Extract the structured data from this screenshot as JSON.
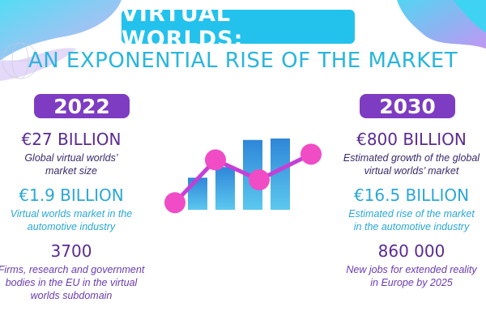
{
  "header": {
    "title": "VIRTUAL WORLDS:",
    "subtitle": "AN EXPONENTIAL RISE OF THE MARKET"
  },
  "left": {
    "year": "2022",
    "stats": [
      {
        "value": "€27 BILLION",
        "desc_lines": [
          "Global virtual worlds’",
          "market size"
        ]
      },
      {
        "value": "€1.9 BILLION",
        "desc_lines": [
          "Virtual worlds market in the",
          "automotive industry"
        ]
      },
      {
        "value": "3700",
        "desc_lines": [
          "Firms, research and government",
          "bodies in the EU in the virtual",
          "worlds subdomain"
        ]
      }
    ]
  },
  "right": {
    "year": "2030",
    "stats": [
      {
        "value": "€800 BILLION",
        "desc_lines": [
          "Estimated growth of the global",
          "virtual worlds’ market"
        ]
      },
      {
        "value": "€16.5 BILLION",
        "desc_lines": [
          "Estimated rise of the market",
          "in the automotive industry"
        ]
      },
      {
        "value": "860 000",
        "desc_lines": [
          "New jobs for extended reality",
          "in Europe by 2025"
        ]
      }
    ]
  },
  "illustration": {
    "bar_levels": [
      0.45,
      0.6,
      0.98,
      1.0
    ],
    "line_levels": [
      0.1,
      0.7,
      0.42,
      0.78
    ],
    "colors": {
      "bar": "#3d9fe0",
      "line": "#c53fd6",
      "dot": "#f04cc5"
    }
  },
  "colors": {
    "title_bg": "#23c2ec",
    "year_bg": "#7d3cc1",
    "accent_purple": "#5a2b91",
    "accent_cyan": "#2aa7d5"
  }
}
